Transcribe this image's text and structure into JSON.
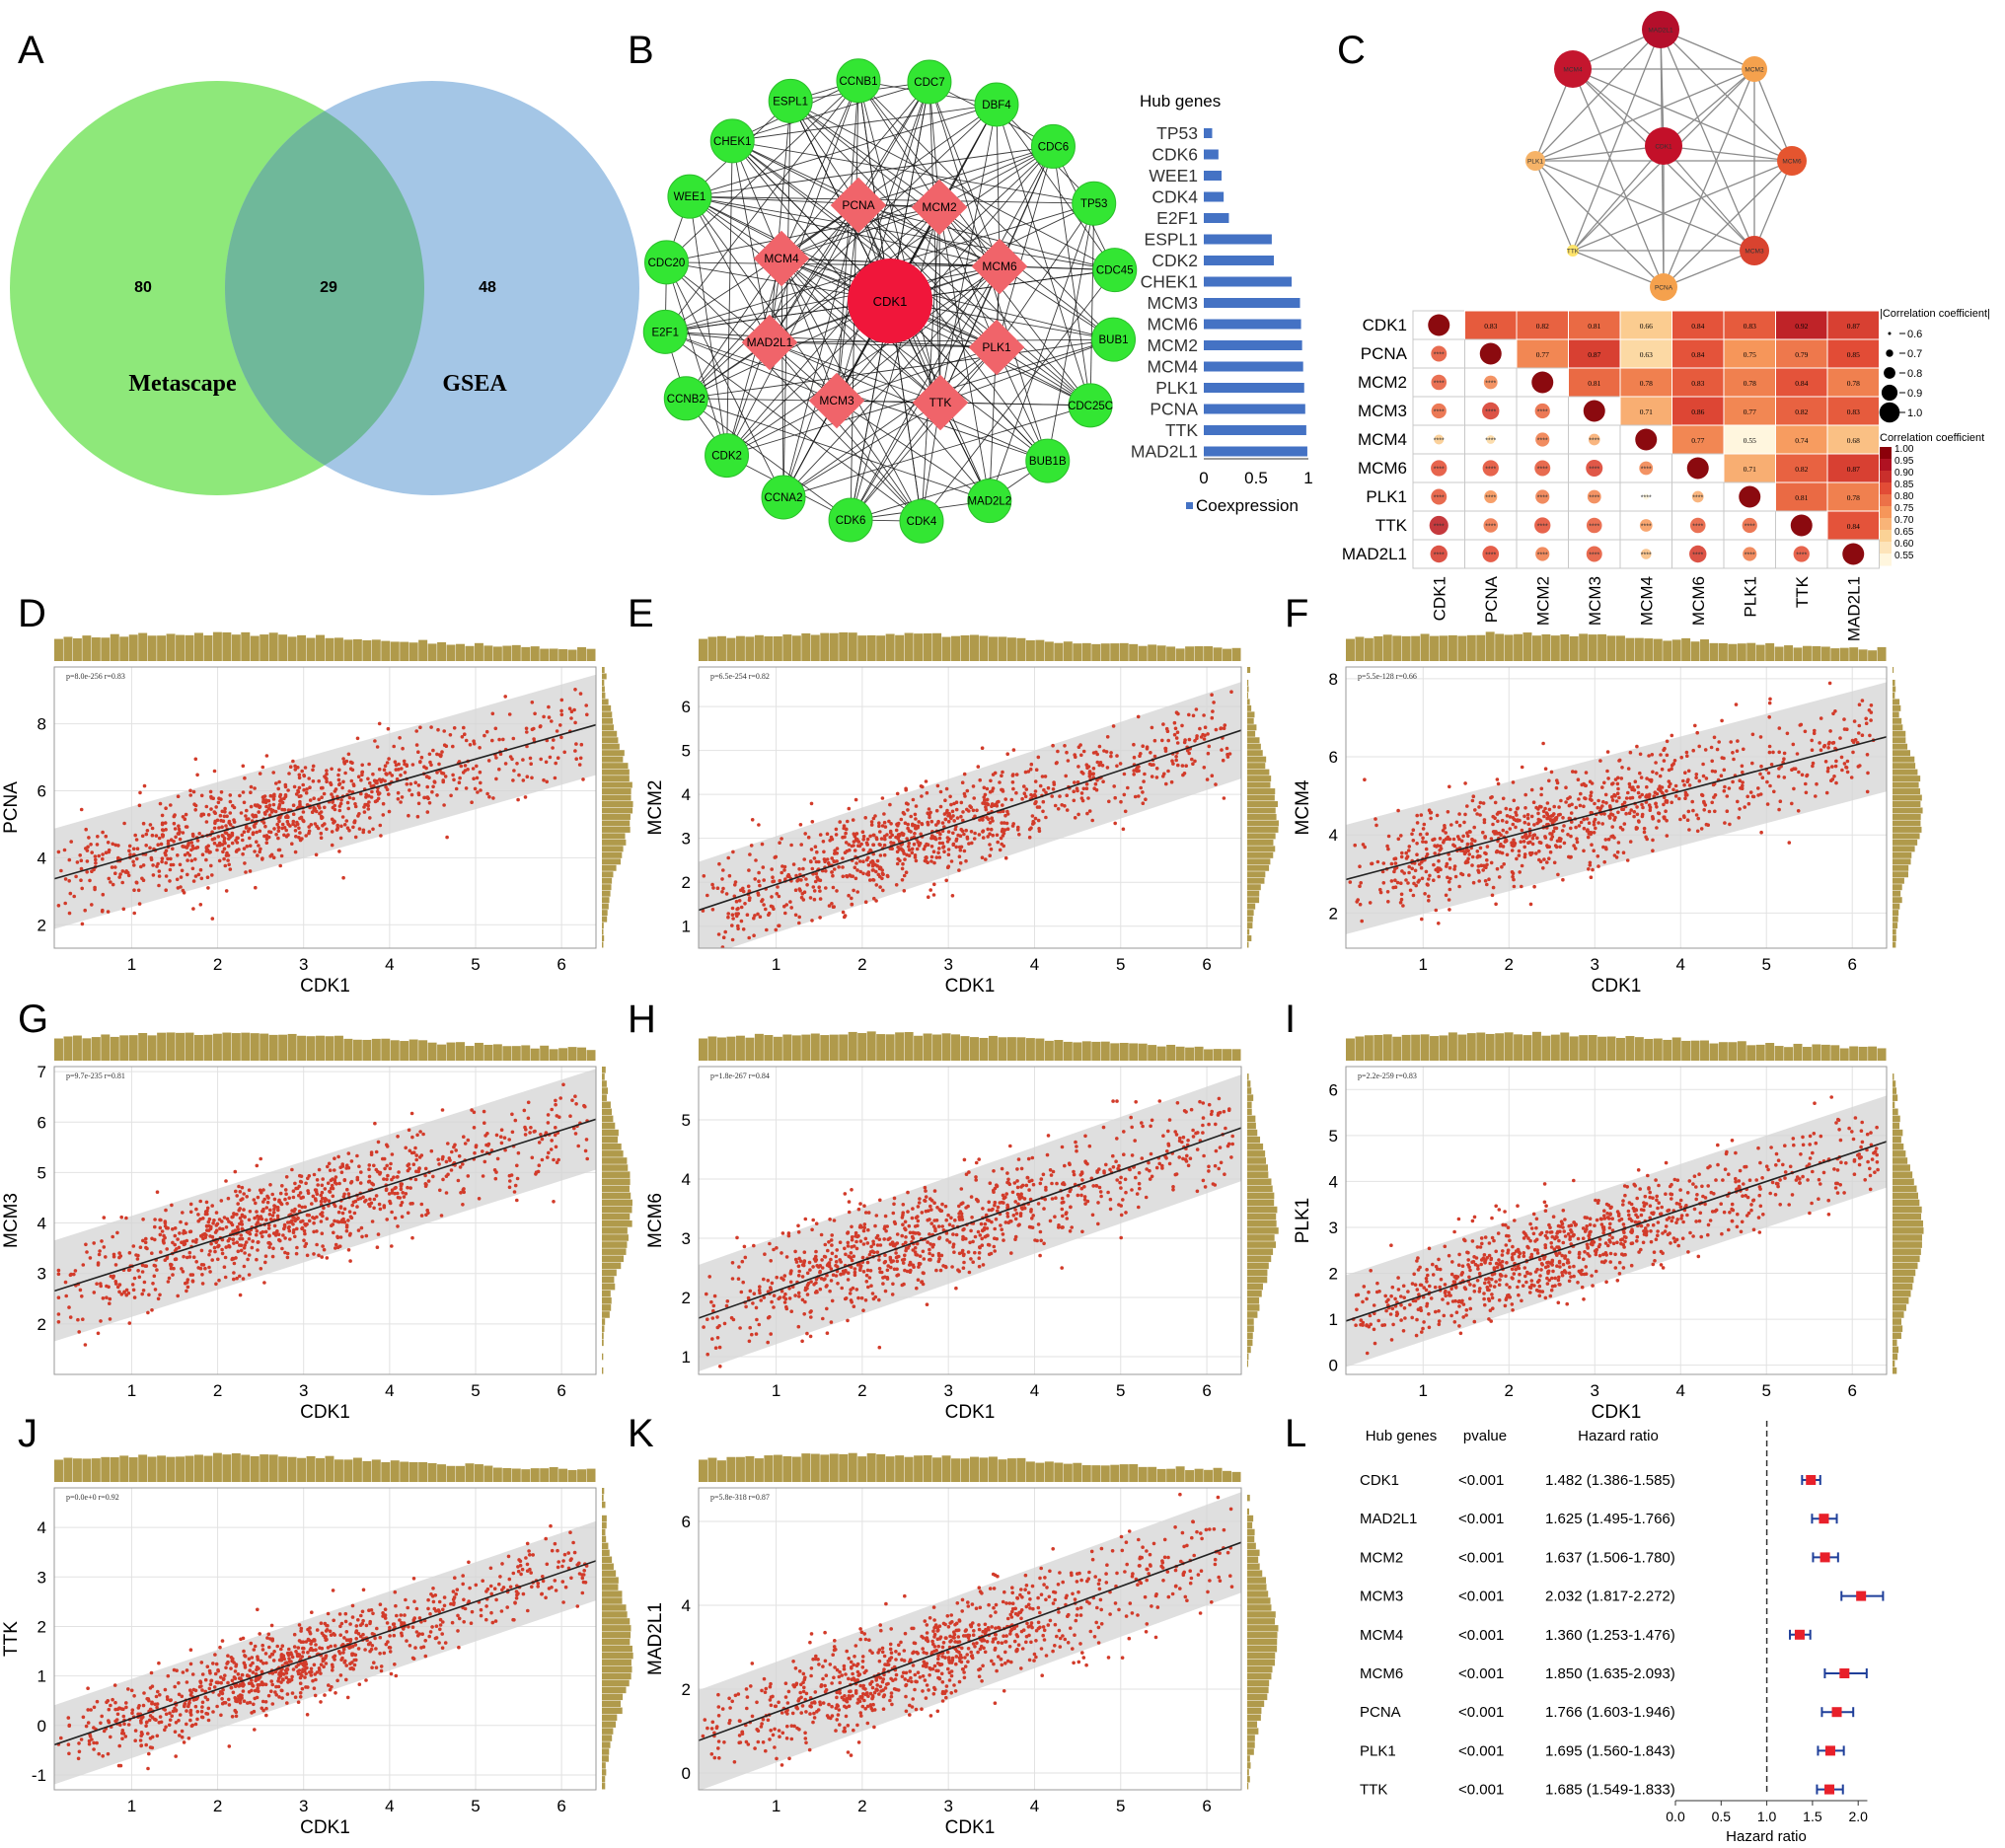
{
  "panel_letters": [
    "A",
    "B",
    "C",
    "D",
    "E",
    "F",
    "G",
    "H",
    "I",
    "J",
    "K",
    "L"
  ],
  "panel_a": {
    "left_label": "Metascape",
    "right_label": "GSEA",
    "left_only": "80",
    "overlap": "29",
    "right_only": "48",
    "left_color": "#8ee87a",
    "right_color": "#a4c6e6",
    "overlap_color": "#6fb89a"
  },
  "panel_b": {
    "center_gene": "CDK1",
    "inner_genes": [
      "PCNA",
      "MCM2",
      "MCM6",
      "PLK1",
      "TTK",
      "MCM3",
      "MAD2L1",
      "MCM4"
    ],
    "outer_genes": [
      "CDC7",
      "DBF4",
      "CDC6",
      "TP53",
      "CDC45",
      "BUB1",
      "CDC25C",
      "BUB1B",
      "MAD2L2",
      "CDK4",
      "CDK6",
      "CCNA2",
      "CDK2",
      "CCNB2",
      "E2F1",
      "CDC20",
      "WEE1",
      "CHEK1",
      "ESPL1",
      "CCNB1"
    ],
    "bar_title": "Hub genes",
    "bar_legend": "Coexpression",
    "bar_ticks": [
      "0",
      "0.5",
      "1"
    ],
    "bar_color": "#4472c4"
  },
  "panel_c": {
    "network_genes": [
      "MAD2L1",
      "MCM2",
      "MCM6",
      "MCM3",
      "PCNA",
      "TTK",
      "PLK1",
      "MCM4",
      "CDK1"
    ],
    "genes": [
      "CDK1",
      "PCNA",
      "MCM2",
      "MCM3",
      "MCM4",
      "MCM6",
      "PLK1",
      "TTK",
      "MAD2L1"
    ],
    "stars": "****",
    "size_legend_title": "|Correlation coefficient|",
    "size_legend_values": [
      "0.6",
      "0.7",
      "0.8",
      "0.9",
      "1.0"
    ],
    "color_legend_title": "Correlation coefficient",
    "color_legend_values": [
      "1.00",
      "0.95",
      "0.90",
      "0.85",
      "0.80",
      "0.75",
      "0.70",
      "0.65",
      "0.60",
      "0.55"
    ]
  },
  "panel_l": {
    "headers": [
      "Hub genes",
      "pvalue",
      "Hazard ratio"
    ],
    "rows": [
      {
        "gene": "CDK1",
        "p": "<0.001",
        "hr": "1.482 (1.386-1.585)"
      },
      {
        "gene": "MAD2L1",
        "p": "<0.001",
        "hr": "1.625 (1.495-1.766)"
      },
      {
        "gene": "MCM2",
        "p": "<0.001",
        "hr": "1.637 (1.506-1.780)"
      },
      {
        "gene": "MCM3",
        "p": "<0.001",
        "hr": "2.032 (1.817-2.272)"
      },
      {
        "gene": "MCM4",
        "p": "<0.001",
        "hr": "1.360 (1.253-1.476)"
      },
      {
        "gene": "MCM6",
        "p": "<0.001",
        "hr": "1.850 (1.635-2.093)"
      },
      {
        "gene": "PCNA",
        "p": "<0.001",
        "hr": "1.766 (1.603-1.946)"
      },
      {
        "gene": "PLK1",
        "p": "<0.001",
        "hr": "1.695 (1.560-1.843)"
      },
      {
        "gene": "TTK",
        "p": "<0.001",
        "hr": "1.685 (1.549-1.833)"
      }
    ],
    "x_ticks": [
      "0.0",
      "0.5",
      "1.0",
      "1.5",
      "2.0"
    ],
    "x_label": "Hazard ratio"
  },
  "chart_data": [
    {
      "type": "bar",
      "panel": "B",
      "title": "Hub genes",
      "categories": [
        "TP53",
        "CDK6",
        "WEE1",
        "CDK4",
        "E2F1",
        "ESPL1",
        "CDK2",
        "CHEK1",
        "MCM3",
        "MCM6",
        "MCM2",
        "MCM4",
        "PLK1",
        "PCNA",
        "TTK",
        "MAD2L1"
      ],
      "series": [
        {
          "name": "Coexpression",
          "values": [
            0.08,
            0.14,
            0.17,
            0.19,
            0.24,
            0.65,
            0.67,
            0.84,
            0.92,
            0.93,
            0.94,
            0.95,
            0.96,
            0.97,
            0.98,
            0.99
          ]
        }
      ],
      "xlim": [
        0,
        1
      ]
    },
    {
      "type": "heatmap",
      "panel": "C",
      "genes": [
        "CDK1",
        "PCNA",
        "MCM2",
        "MCM3",
        "MCM4",
        "MCM6",
        "PLK1",
        "TTK",
        "MAD2L1"
      ],
      "values": [
        [
          1,
          0.83,
          0.82,
          0.81,
          0.66,
          0.84,
          0.83,
          0.92,
          0.87
        ],
        [
          0.83,
          1,
          0.77,
          0.87,
          0.63,
          0.84,
          0.75,
          0.79,
          0.85
        ],
        [
          0.82,
          0.77,
          1,
          0.81,
          0.78,
          0.83,
          0.78,
          0.84,
          0.78
        ],
        [
          0.81,
          0.87,
          0.81,
          1,
          0.71,
          0.86,
          0.77,
          0.82,
          0.83
        ],
        [
          0.66,
          0.63,
          0.78,
          0.71,
          1,
          0.77,
          0.55,
          0.74,
          0.68
        ],
        [
          0.84,
          0.84,
          0.83,
          0.86,
          0.77,
          1,
          0.71,
          0.82,
          0.87
        ],
        [
          0.83,
          0.75,
          0.78,
          0.77,
          0.55,
          0.71,
          1,
          0.81,
          0.78
        ],
        [
          0.92,
          0.79,
          0.84,
          0.82,
          0.74,
          0.82,
          0.81,
          1,
          0.84
        ],
        [
          0.87,
          0.85,
          0.78,
          0.83,
          0.68,
          0.87,
          0.78,
          0.84,
          1
        ]
      ]
    },
    {
      "type": "scatter",
      "panel": "D",
      "xlabel": "CDK1",
      "ylabel": "PCNA",
      "annotation": "p=8.0e-256 r=0.83",
      "xlim": [
        0.1,
        6.4
      ],
      "ylim": [
        1.3,
        9.7
      ],
      "xticks": [
        1,
        2,
        3,
        4,
        5,
        6
      ],
      "yticks": [
        2,
        4,
        6,
        8
      ],
      "slope": 0.73,
      "intercept": 3.3,
      "band": 1.5
    },
    {
      "type": "scatter",
      "panel": "E",
      "xlabel": "CDK1",
      "ylabel": "MCM2",
      "annotation": "p=6.5e-254 r=0.82",
      "xlim": [
        0.1,
        6.4
      ],
      "ylim": [
        0.5,
        6.9
      ],
      "xticks": [
        1,
        2,
        3,
        4,
        5,
        6
      ],
      "yticks": [
        1,
        2,
        3,
        4,
        5,
        6
      ],
      "slope": 0.65,
      "intercept": 1.3,
      "band": 1.1
    },
    {
      "type": "scatter",
      "panel": "F",
      "xlabel": "CDK1",
      "ylabel": "MCM4",
      "annotation": "p=5.5e-128 r=0.66",
      "xlim": [
        0.1,
        6.4
      ],
      "ylim": [
        1.1,
        8.3
      ],
      "xticks": [
        1,
        2,
        3,
        4,
        5,
        6
      ],
      "yticks": [
        2,
        4,
        6,
        8
      ],
      "slope": 0.58,
      "intercept": 2.8,
      "band": 1.4
    },
    {
      "type": "scatter",
      "panel": "G",
      "xlabel": "CDK1",
      "ylabel": "MCM3",
      "annotation": "p=9.7e-235 r=0.81",
      "xlim": [
        0.1,
        6.4
      ],
      "ylim": [
        1.0,
        7.1
      ],
      "xticks": [
        1,
        2,
        3,
        4,
        5,
        6
      ],
      "yticks": [
        2,
        3,
        4,
        5,
        6,
        7
      ],
      "slope": 0.54,
      "intercept": 2.6,
      "band": 1.0
    },
    {
      "type": "scatter",
      "panel": "H",
      "xlabel": "CDK1",
      "ylabel": "MCM6",
      "annotation": "p=1.8e-267 r=0.84",
      "xlim": [
        0.1,
        6.4
      ],
      "ylim": [
        0.7,
        5.9
      ],
      "xticks": [
        1,
        2,
        3,
        4,
        5,
        6
      ],
      "yticks": [
        1,
        2,
        3,
        4,
        5
      ],
      "slope": 0.51,
      "intercept": 1.6,
      "band": 0.9
    },
    {
      "type": "scatter",
      "panel": "I",
      "xlabel": "CDK1",
      "ylabel": "PLK1",
      "annotation": "p=2.2e-259 r=0.83",
      "xlim": [
        0.1,
        6.4
      ],
      "ylim": [
        -0.2,
        6.5
      ],
      "xticks": [
        1,
        2,
        3,
        4,
        5,
        6
      ],
      "yticks": [
        0,
        1,
        2,
        3,
        4,
        5,
        6
      ],
      "slope": 0.62,
      "intercept": 0.9,
      "band": 1.0
    },
    {
      "type": "scatter",
      "panel": "J",
      "xlabel": "CDK1",
      "ylabel": "TTK",
      "annotation": "p=0.0e+0 r=0.92",
      "xlim": [
        0.1,
        6.4
      ],
      "ylim": [
        -1.3,
        4.8
      ],
      "xticks": [
        1,
        2,
        3,
        4,
        5,
        6
      ],
      "yticks": [
        -1,
        0,
        1,
        2,
        3,
        4
      ],
      "slope": 0.59,
      "intercept": -0.45,
      "band": 0.8
    },
    {
      "type": "scatter",
      "panel": "K",
      "xlabel": "CDK1",
      "ylabel": "MAD2L1",
      "annotation": "p=5.8e-318 r=0.87",
      "xlim": [
        0.1,
        6.4
      ],
      "ylim": [
        -0.4,
        6.8
      ],
      "xticks": [
        1,
        2,
        3,
        4,
        5,
        6
      ],
      "yticks": [
        0,
        2,
        4,
        6
      ],
      "slope": 0.75,
      "intercept": 0.7,
      "band": 1.2
    },
    {
      "type": "scatter",
      "panel": "L",
      "title": "Hazard ratio",
      "categories": [
        "CDK1",
        "MAD2L1",
        "MCM2",
        "MCM3",
        "MCM4",
        "MCM6",
        "PCNA",
        "PLK1",
        "TTK"
      ],
      "values": [
        1.482,
        1.625,
        1.637,
        2.032,
        1.36,
        1.85,
        1.766,
        1.695,
        1.685
      ],
      "lower": [
        1.386,
        1.495,
        1.506,
        1.817,
        1.253,
        1.635,
        1.603,
        1.56,
        1.549
      ],
      "upper": [
        1.585,
        1.766,
        1.78,
        2.272,
        1.476,
        2.093,
        1.946,
        1.843,
        1.833
      ],
      "xlim": [
        0,
        2.2
      ],
      "reference": 1.0
    }
  ]
}
